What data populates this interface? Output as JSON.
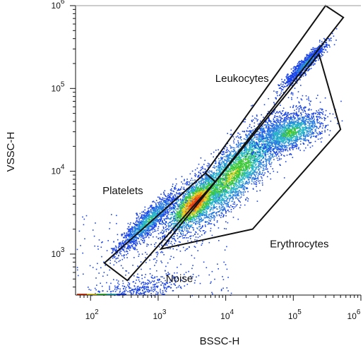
{
  "chart_data": {
    "type": "scatter",
    "title": "",
    "xlabel": "BSSC-H",
    "ylabel": "VSSC-H",
    "xscale": "log",
    "yscale": "log",
    "xlim": [
      60,
      1000000
    ],
    "ylim": [
      320,
      1000000
    ],
    "x_ticks": [
      {
        "value": 100,
        "base": "10",
        "exp": "2"
      },
      {
        "value": 1000,
        "base": "10",
        "exp": "3"
      },
      {
        "value": 10000,
        "base": "10",
        "exp": "4"
      },
      {
        "value": 100000,
        "base": "10",
        "exp": "5"
      },
      {
        "value": 1000000,
        "base": "10",
        "exp": "6"
      }
    ],
    "y_ticks": [
      {
        "value": 1000,
        "base": "10",
        "exp": "3"
      },
      {
        "value": 10000,
        "base": "10",
        "exp": "4"
      },
      {
        "value": 100000,
        "base": "10",
        "exp": "5"
      },
      {
        "value": 1000000,
        "base": "10",
        "exp": "6"
      }
    ],
    "colormap": "density (blue - cyan - green - yellow - red)",
    "populations": [
      {
        "name": "Erythrocytes",
        "center": [
          12000,
          9000
        ],
        "note": "densest cluster, hot spot near x=3500, y=4200"
      },
      {
        "name": "Leukocytes",
        "center": [
          150000,
          200000
        ]
      },
      {
        "name": "Platelets",
        "center": [
          700,
          2500
        ]
      },
      {
        "name": "Noise",
        "center": [
          600,
          380
        ]
      }
    ],
    "gates": [
      {
        "name": "Leukocytes",
        "shape": "polygon",
        "vertices": [
          [
            5000,
            9500
          ],
          [
            300000,
            1000000
          ],
          [
            550000,
            720000
          ],
          [
            7000,
            7500
          ]
        ]
      },
      {
        "name": "Platelets",
        "shape": "polygon",
        "vertices": [
          [
            160,
            780
          ],
          [
            5000,
            9500
          ],
          [
            7000,
            7500
          ],
          [
            350,
            480
          ]
        ]
      },
      {
        "name": "Erythrocytes",
        "shape": "polygon",
        "vertices": [
          [
            1100,
            1150
          ],
          [
            25000,
            2000
          ],
          [
            500000,
            32000
          ],
          [
            240000,
            260000
          ]
        ]
      }
    ],
    "labels": [
      {
        "text": "Leukocytes",
        "at": [
          7000,
          120000
        ]
      },
      {
        "text": "Platelets",
        "at": [
          150,
          5300
        ]
      },
      {
        "text": "Erythrocytes",
        "at": [
          45000,
          1200
        ]
      },
      {
        "text": "Noise",
        "at": [
          1300,
          460
        ]
      }
    ],
    "grid": false,
    "legend": "none"
  }
}
